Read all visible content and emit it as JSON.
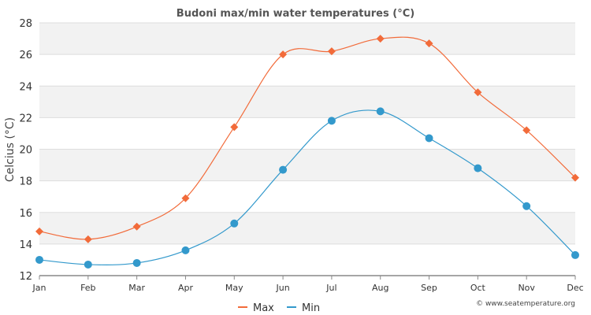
{
  "chart_data": {
    "type": "line",
    "title": "Budoni max/min water temperatures (°C)",
    "ylabel": "Celcius (°C)",
    "xlabel": "",
    "categories": [
      "Jan",
      "Feb",
      "Mar",
      "Apr",
      "May",
      "Jun",
      "Jul",
      "Aug",
      "Sep",
      "Oct",
      "Nov",
      "Dec"
    ],
    "ylim": [
      12,
      28
    ],
    "yticks": [
      "12",
      "14",
      "16",
      "18",
      "20",
      "22",
      "24",
      "26",
      "28"
    ],
    "grid": true,
    "legend_position": "bottom",
    "series": [
      {
        "name": "Max",
        "color": "#f26b3a",
        "marker": "diamond",
        "values": [
          14.8,
          14.3,
          15.1,
          16.9,
          21.4,
          26.0,
          26.2,
          27.0,
          26.7,
          23.6,
          21.2,
          18.2
        ]
      },
      {
        "name": "Min",
        "color": "#3399cc",
        "marker": "circle",
        "values": [
          13.0,
          12.7,
          12.8,
          13.6,
          15.3,
          18.7,
          21.8,
          22.4,
          20.7,
          18.8,
          16.4,
          13.3
        ]
      }
    ]
  },
  "credit": "© www.seatemperature.org",
  "colors": {
    "band": "#f2f2f2",
    "grid": "#dddddd",
    "axis": "#888888"
  }
}
